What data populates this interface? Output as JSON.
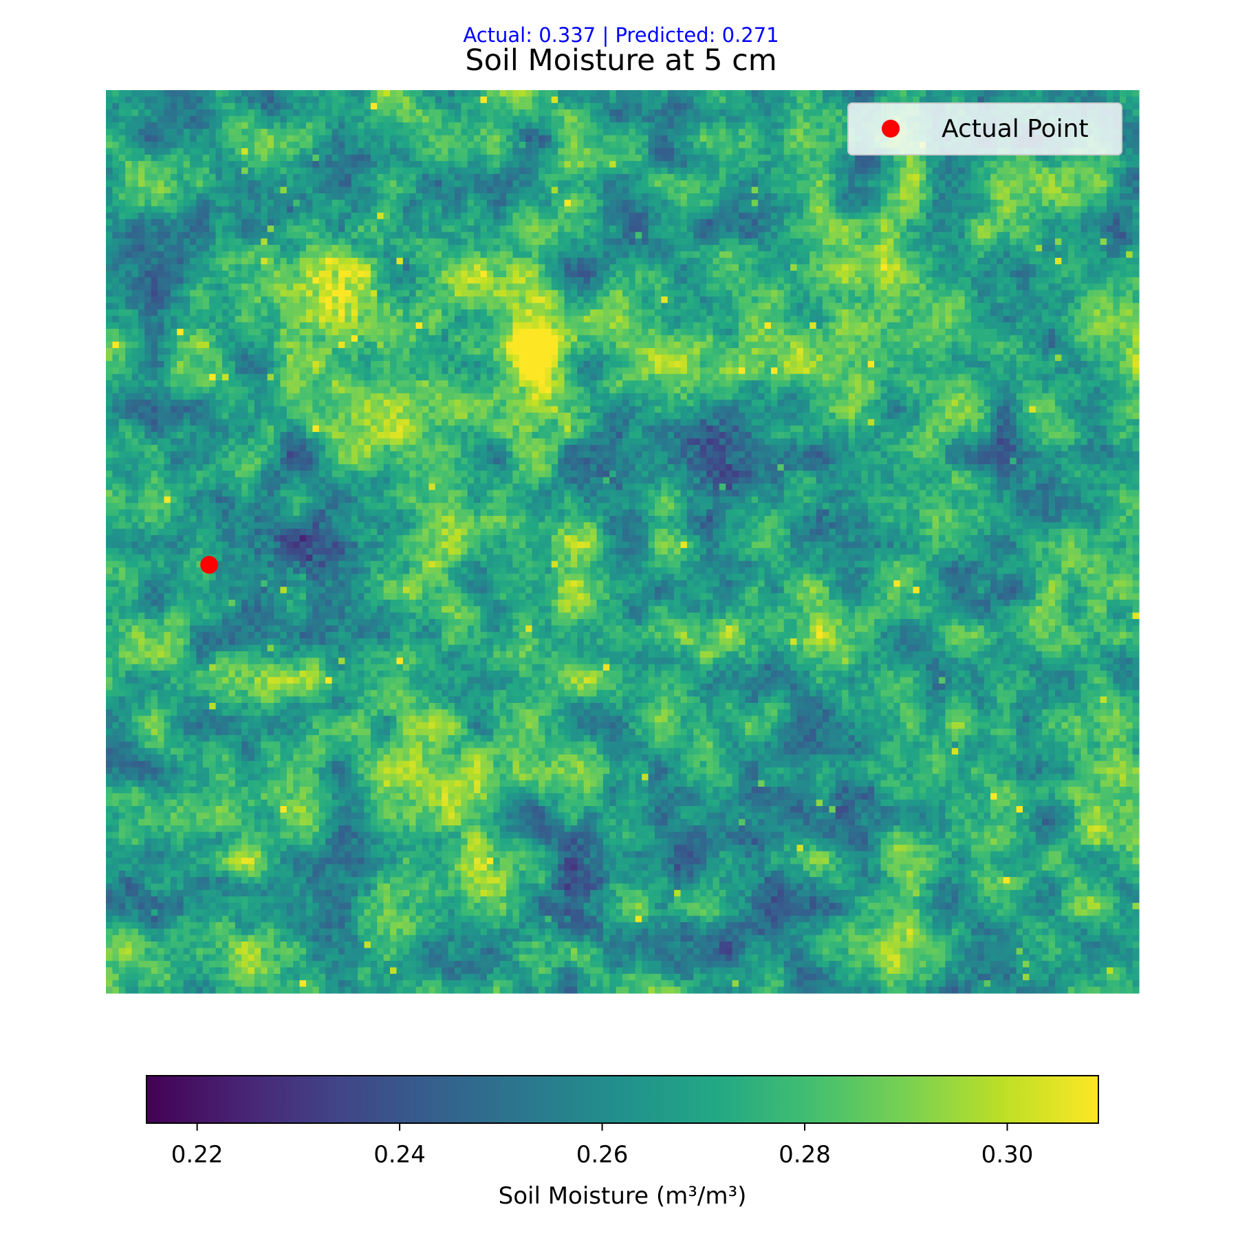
{
  "chart_data": {
    "type": "heatmap",
    "title": "Soil Moisture at 5 cm",
    "subtitle": "Actual: 0.337 | Predicted: 0.271",
    "xlabel": "",
    "ylabel": "",
    "axes_visible": false,
    "grid": false,
    "colormap": "viridis",
    "colorbar": {
      "orientation": "horizontal",
      "label": "Soil Moisture (m³/m³)",
      "range": [
        0.215,
        0.309
      ],
      "ticks": [
        0.22,
        0.24,
        0.26,
        0.28,
        0.3
      ],
      "tick_labels": [
        "0.22",
        "0.24",
        "0.26",
        "0.28",
        "0.30"
      ]
    },
    "grid_size": {
      "cols": 160,
      "rows": 140
    },
    "value_range": [
      0.215,
      0.309
    ],
    "regions_high": [
      {
        "col": 37,
        "row": 28,
        "radius": 14,
        "value": 0.296
      },
      {
        "col": 55,
        "row": 38,
        "radius": 10,
        "value": 0.294
      },
      {
        "col": 66,
        "row": 40,
        "radius": 6,
        "value": 0.296
      },
      {
        "col": 68,
        "row": 50,
        "radius": 7,
        "value": 0.292
      },
      {
        "col": 73,
        "row": 68,
        "radius": 5,
        "value": 0.29
      }
    ],
    "regions_low": [
      {
        "col": 30,
        "row": 72,
        "radius": 12,
        "value": 0.246
      },
      {
        "col": 93,
        "row": 57,
        "radius": 9,
        "value": 0.25
      },
      {
        "col": 112,
        "row": 63,
        "radius": 8,
        "value": 0.25
      },
      {
        "col": 70,
        "row": 128,
        "radius": 10,
        "value": 0.25
      }
    ],
    "points": [
      {
        "name": "Actual Point",
        "col": 16.0,
        "row": 73.6,
        "color": "#ff0000"
      }
    ],
    "legend": {
      "placement": "top-right",
      "entries": [
        {
          "label": "Actual Point",
          "color": "#ff0000"
        }
      ]
    }
  }
}
